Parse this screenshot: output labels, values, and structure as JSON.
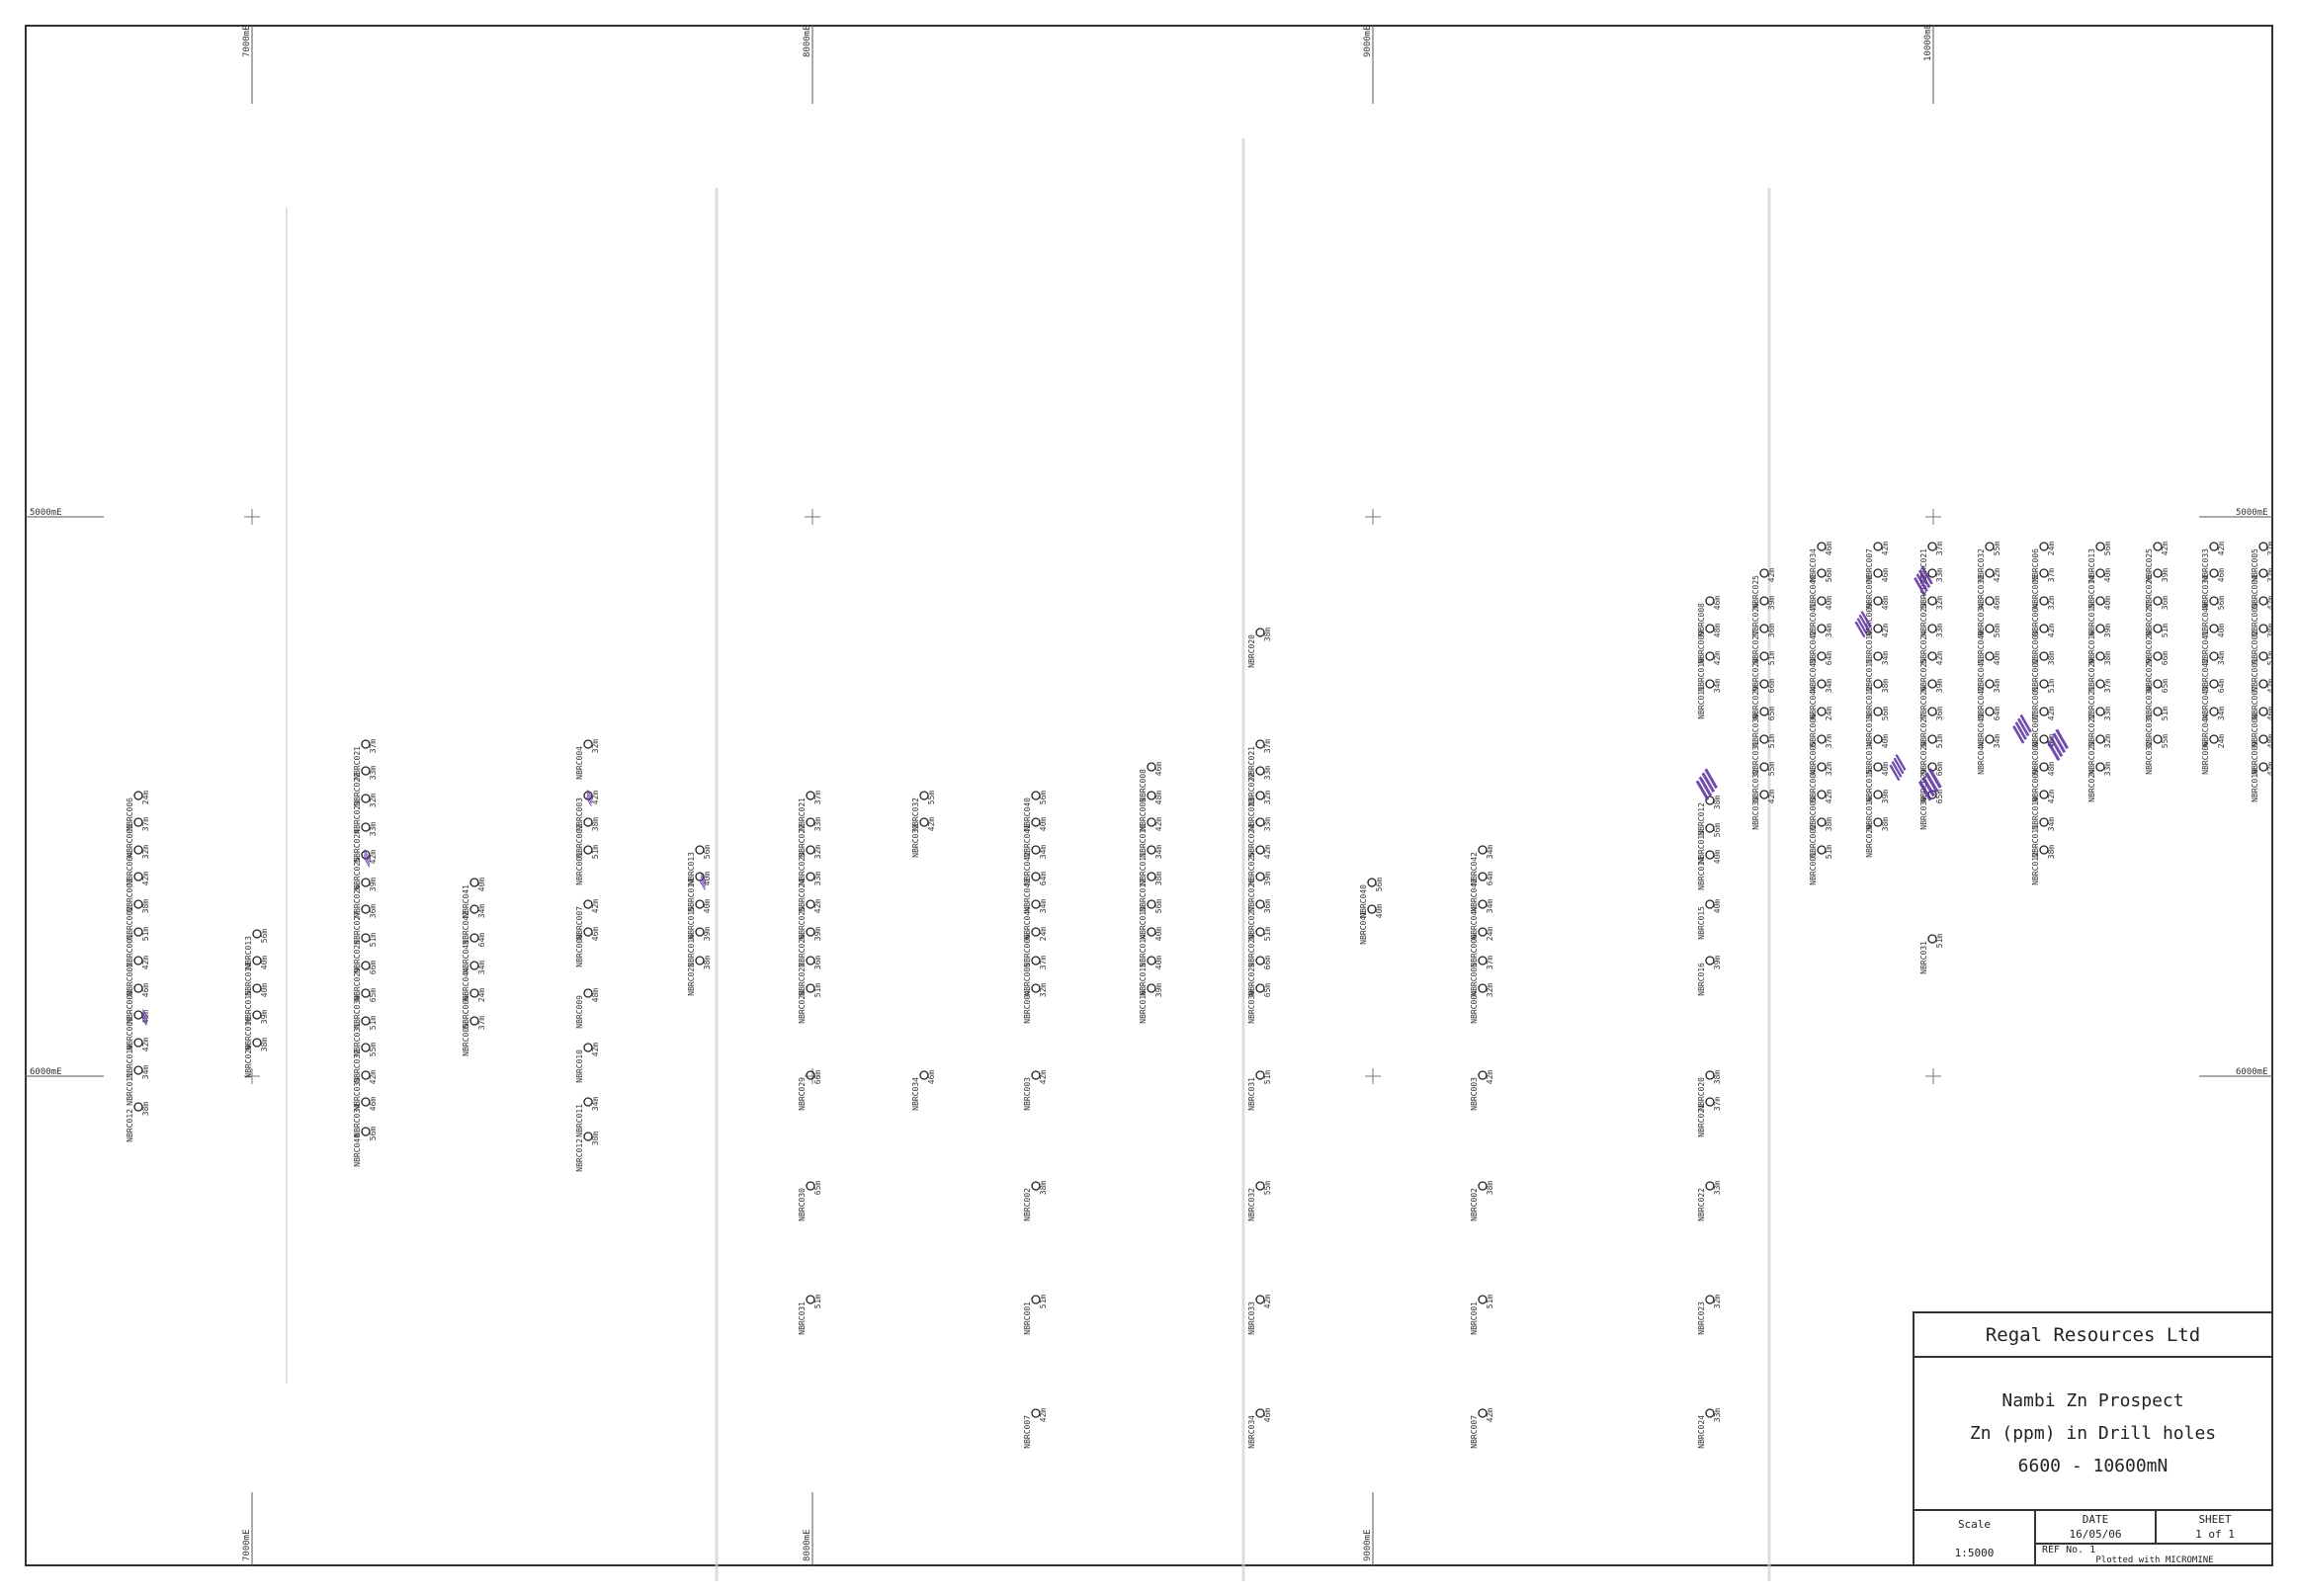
{
  "grid": {
    "easting_labels": [
      "7000mE",
      "8000mE",
      "9000mE",
      "10000mE"
    ],
    "northing_labels": [
      "5000mE",
      "6000mE"
    ]
  },
  "holes": [
    {
      "id": "NBRC006",
      "val": "",
      "depth": "24m"
    },
    {
      "id": "NBRC005",
      "val": "",
      "depth": "37m"
    },
    {
      "id": "NBRC004",
      "val": "",
      "depth": "32m"
    },
    {
      "id": "NBRC003",
      "val": "",
      "depth": "42m"
    },
    {
      "id": "NBRC002",
      "val": "",
      "depth": "38m"
    },
    {
      "id": "NBRC001",
      "val": "",
      "depth": "51m"
    },
    {
      "id": "NBRC007",
      "val": "",
      "depth": "42m"
    },
    {
      "id": "NBRC008",
      "val": "",
      "depth": "46m"
    },
    {
      "id": "NBRC009",
      "val": "",
      "depth": "48m"
    },
    {
      "id": "NBRC010",
      "val": "",
      "depth": "42m"
    },
    {
      "id": "NBRC011",
      "val": "",
      "depth": "34m"
    },
    {
      "id": "NBRC012",
      "val": "",
      "depth": "38m"
    },
    {
      "id": "NBRC013",
      "val": "",
      "depth": "56m"
    },
    {
      "id": "NBRC014",
      "val": "",
      "depth": "40m"
    },
    {
      "id": "NBRC015",
      "val": "",
      "depth": "40m"
    },
    {
      "id": "NBRC016",
      "val": "",
      "depth": "39m"
    },
    {
      "id": "NBRC020",
      "val": "",
      "depth": "38m"
    },
    {
      "id": "NBRC021",
      "val": "",
      "depth": "37m"
    },
    {
      "id": "NBRC022",
      "val": "",
      "depth": "33m"
    },
    {
      "id": "NBRC023",
      "val": "",
      "depth": "32m"
    },
    {
      "id": "NBRC024",
      "val": "",
      "depth": "33m"
    },
    {
      "id": "NBRC025",
      "val": "",
      "depth": "42m"
    },
    {
      "id": "NBRC026",
      "val": "",
      "depth": "39m"
    },
    {
      "id": "NBRC027",
      "val": "",
      "depth": "36m"
    },
    {
      "id": "NBRC028",
      "val": "",
      "depth": "51m"
    },
    {
      "id": "NBRC029",
      "val": "",
      "depth": "66m"
    },
    {
      "id": "NBRC030",
      "val": "",
      "depth": "65m"
    },
    {
      "id": "NBRC031",
      "val": "",
      "depth": "51m"
    },
    {
      "id": "NBRC032",
      "val": "",
      "depth": "55m"
    },
    {
      "id": "NBRC033",
      "val": "",
      "depth": "42m"
    },
    {
      "id": "NBRC034",
      "val": "",
      "depth": "46m"
    },
    {
      "id": "NBRC040",
      "val": "",
      "depth": "56m"
    },
    {
      "id": "NBRC041",
      "val": "",
      "depth": "40m"
    },
    {
      "id": "NBRC042",
      "val": "",
      "depth": "34m"
    },
    {
      "id": "NBRC043",
      "val": "",
      "depth": "64m"
    },
    {
      "id": "NBRC044",
      "val": "",
      "depth": "34m"
    }
  ],
  "title_block": {
    "company": "Regal Resources Ltd",
    "project": "Nambi Zn Prospect",
    "subtitle": "Zn (ppm) in Drill holes",
    "range": "6600 - 10600mN",
    "scale_label": "Scale",
    "scale_value": "1:5000",
    "date_label": "DATE",
    "date_value": "16/05/06",
    "sheet_label": "SHEET",
    "sheet_value": "1 of 1",
    "ref": "REF No. 1",
    "plotted": "Plotted with MICROMINE"
  },
  "colors": {
    "frame": "#333333",
    "hole_value": "#6a4bc4",
    "anomaly": "#5b2ca0",
    "scan_noise": "#c8d4cc"
  }
}
